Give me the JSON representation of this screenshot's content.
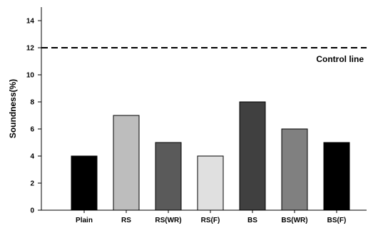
{
  "chart_data": {
    "type": "bar",
    "categories": [
      "Plain",
      "RS",
      "RS(WR)",
      "RS(F)",
      "BS",
      "BS(WR)",
      "BS(F)"
    ],
    "values": [
      4,
      7,
      5,
      4,
      8,
      6,
      5
    ],
    "bar_colors": [
      "#000000",
      "#bdbdbd",
      "#5a5a5a",
      "#e0e0e0",
      "#404040",
      "#808080",
      "#000000"
    ],
    "ylabel": "Soundness(%)",
    "xlabel": "",
    "ylim": [
      0,
      15
    ],
    "yticks": [
      0,
      2,
      4,
      6,
      8,
      10,
      12,
      14
    ],
    "reference_line": {
      "value": 12,
      "label": "Control line",
      "style": "dashed"
    },
    "grid": false,
    "legend": "none"
  }
}
